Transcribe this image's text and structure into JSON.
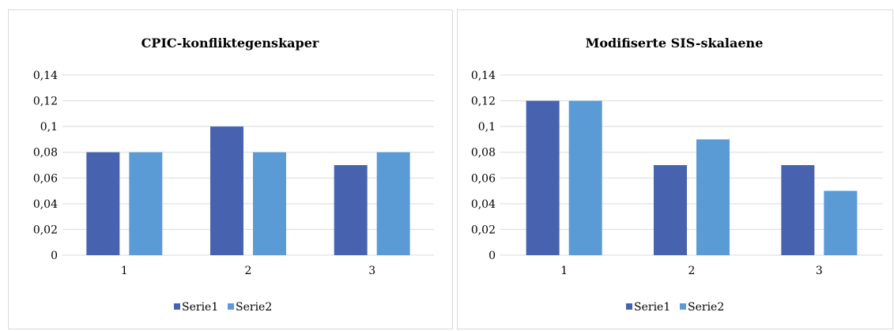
{
  "chart_data": [
    {
      "type": "bar",
      "title": "CPIC-konfliktegenskaper",
      "categories": [
        "1",
        "2",
        "3"
      ],
      "series": [
        {
          "name": "Serie1",
          "values": [
            0.08,
            0.1,
            0.07
          ]
        },
        {
          "name": "Serie2",
          "values": [
            0.08,
            0.08,
            0.08
          ]
        }
      ],
      "ylim": [
        0,
        0.14
      ],
      "yticks": [
        "0",
        "0,02",
        "0,04",
        "0,06",
        "0,08",
        "0,1",
        "0,12",
        "0,14"
      ],
      "grid": true,
      "legend": "bottom",
      "colors": [
        "#4763AF",
        "#5B9BD5"
      ]
    },
    {
      "type": "bar",
      "title": "Modifiserte SIS-skalaene",
      "categories": [
        "1",
        "2",
        "3"
      ],
      "series": [
        {
          "name": "Serie1",
          "values": [
            0.12,
            0.07,
            0.07
          ]
        },
        {
          "name": "Serie2",
          "values": [
            0.12,
            0.09,
            0.05
          ]
        }
      ],
      "ylim": [
        0,
        0.14
      ],
      "yticks": [
        "0",
        "0,02",
        "0,04",
        "0,06",
        "0,08",
        "0,1",
        "0,12",
        "0,14"
      ],
      "grid": true,
      "legend": "bottom",
      "colors": [
        "#4763AF",
        "#5B9BD5"
      ]
    }
  ]
}
